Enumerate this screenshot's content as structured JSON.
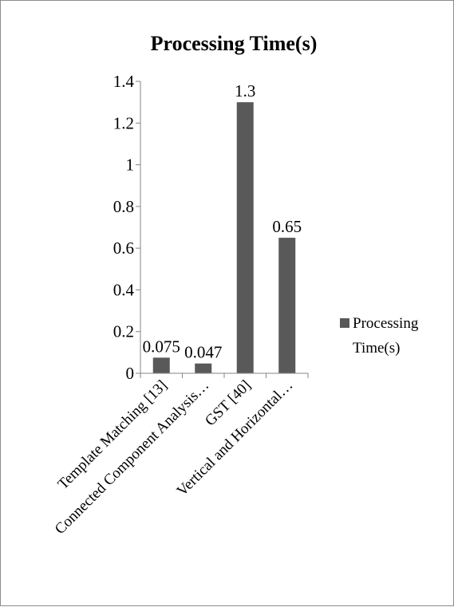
{
  "chart_data": {
    "type": "bar",
    "title": "Processing Time(s)",
    "xlabel": "",
    "ylabel": "",
    "ylim": [
      0,
      1.4
    ],
    "yticks": [
      "0",
      "0.2",
      "0.4",
      "0.6",
      "0.8",
      "1",
      "1.2",
      "1.4"
    ],
    "categories": [
      "Template Matching [13]",
      "Connected Component Analysis…",
      "GST [40]",
      "Vertical and Horizontal…"
    ],
    "series": [
      {
        "name": "Processing Time(s)",
        "values": [
          0.075,
          0.047,
          1.3,
          0.65
        ],
        "labels": [
          "0.075",
          "0.047",
          "1.3",
          "0.65"
        ],
        "color": "#595959"
      }
    ],
    "legend": {
      "position": "right",
      "lines": [
        "Processing",
        "Time(s)"
      ]
    },
    "grid": false
  }
}
